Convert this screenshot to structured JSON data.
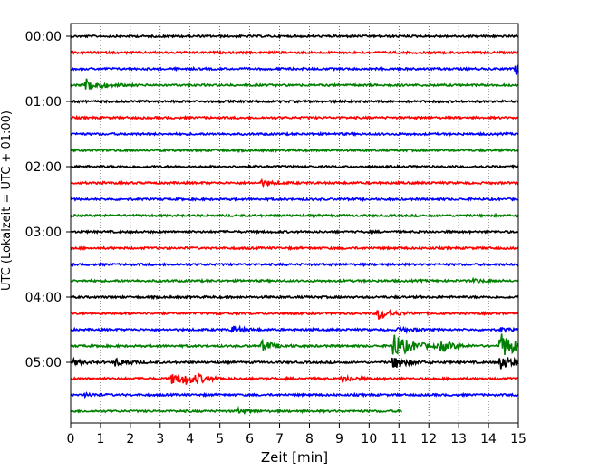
{
  "chart_data": {
    "type": "line",
    "xlabel": "Zeit  [min]",
    "ylabel": "UTC (Lokalzeit = UTC + 01:00)",
    "xlim": [
      0,
      15
    ],
    "xticks": [
      0,
      1,
      2,
      3,
      4,
      5,
      6,
      7,
      8,
      9,
      10,
      11,
      12,
      13,
      14,
      15
    ],
    "yticks": [
      "00:00",
      "01:00",
      "02:00",
      "03:00",
      "04:00",
      "05:00"
    ],
    "grid": "vertical dotted",
    "trace_interval_min": 15,
    "trace_colors": [
      "#000000",
      "#ff0000",
      "#0000ff",
      "#008000"
    ],
    "traces": [
      {
        "start": "00:00",
        "end_min": 15,
        "events": []
      },
      {
        "start": "00:15",
        "end_min": 15,
        "events": []
      },
      {
        "start": "00:30",
        "end_min": 15,
        "events": [
          {
            "t": 14.9,
            "amp": 1.4
          }
        ]
      },
      {
        "start": "00:45",
        "end_min": 15,
        "events": [
          {
            "t": 0.5,
            "amp": 1.3
          }
        ]
      },
      {
        "start": "01:00",
        "end_min": 15,
        "events": []
      },
      {
        "start": "01:15",
        "end_min": 15,
        "events": []
      },
      {
        "start": "01:30",
        "end_min": 15,
        "events": []
      },
      {
        "start": "01:45",
        "end_min": 15,
        "events": []
      },
      {
        "start": "02:00",
        "end_min": 15,
        "events": []
      },
      {
        "start": "02:15",
        "end_min": 15,
        "events": [
          {
            "t": 6.4,
            "amp": 0.5
          }
        ]
      },
      {
        "start": "02:30",
        "end_min": 15,
        "events": []
      },
      {
        "start": "02:45",
        "end_min": 15,
        "events": []
      },
      {
        "start": "03:00",
        "end_min": 15,
        "events": []
      },
      {
        "start": "03:15",
        "end_min": 15,
        "events": []
      },
      {
        "start": "03:30",
        "end_min": 15,
        "events": []
      },
      {
        "start": "03:45",
        "end_min": 15,
        "events": [
          {
            "t": 13.5,
            "amp": 0.3
          }
        ]
      },
      {
        "start": "04:00",
        "end_min": 15,
        "events": []
      },
      {
        "start": "04:15",
        "end_min": 15,
        "events": [
          {
            "t": 10.3,
            "amp": 1.2
          }
        ]
      },
      {
        "start": "04:30",
        "end_min": 15,
        "events": [
          {
            "t": 5.4,
            "amp": 0.7
          },
          {
            "t": 11.0,
            "amp": 0.6
          },
          {
            "t": 14.4,
            "amp": 0.3
          }
        ]
      },
      {
        "start": "04:45",
        "end_min": 15,
        "events": [
          {
            "t": 6.4,
            "amp": 1.0
          },
          {
            "t": 10.8,
            "amp": 2.5
          },
          {
            "t": 12.4,
            "amp": 1.0
          },
          {
            "t": 14.4,
            "amp": 2.5
          }
        ]
      },
      {
        "start": "05:00",
        "end_min": 15,
        "events": [
          {
            "t": 0.1,
            "amp": 0.5
          },
          {
            "t": 1.5,
            "amp": 0.8
          },
          {
            "t": 10.8,
            "amp": 1.2
          },
          {
            "t": 14.4,
            "amp": 1.5
          }
        ]
      },
      {
        "start": "05:15",
        "end_min": 15,
        "events": [
          {
            "t": 3.4,
            "amp": 1.2
          },
          {
            "t": 3.8,
            "amp": 0.9
          },
          {
            "t": 4.2,
            "amp": 0.6
          },
          {
            "t": 9.1,
            "amp": 0.7
          }
        ]
      },
      {
        "start": "05:30",
        "end_min": 15,
        "events": [
          {
            "t": 0.5,
            "amp": 0.3
          }
        ]
      },
      {
        "start": "05:45",
        "end_min": 11.1,
        "events": [
          {
            "t": 5.6,
            "amp": 0.4
          }
        ]
      }
    ]
  }
}
